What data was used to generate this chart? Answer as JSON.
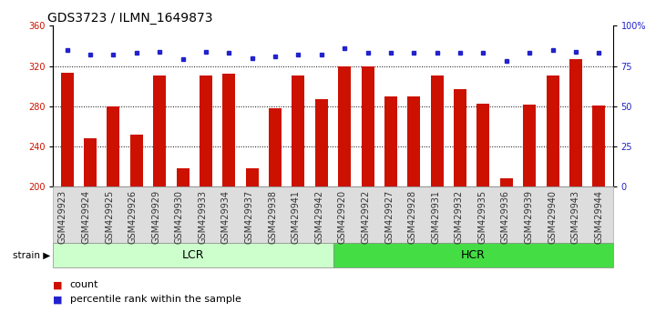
{
  "title": "GDS3723 / ILMN_1649873",
  "categories": [
    "GSM429923",
    "GSM429924",
    "GSM429925",
    "GSM429926",
    "GSM429929",
    "GSM429930",
    "GSM429933",
    "GSM429934",
    "GSM429937",
    "GSM429938",
    "GSM429941",
    "GSM429942",
    "GSM429920",
    "GSM429922",
    "GSM429927",
    "GSM429928",
    "GSM429931",
    "GSM429932",
    "GSM429935",
    "GSM429936",
    "GSM429939",
    "GSM429940",
    "GSM429943",
    "GSM429944"
  ],
  "bar_values": [
    313,
    248,
    280,
    252,
    311,
    218,
    311,
    312,
    218,
    278,
    311,
    287,
    320,
    320,
    290,
    290,
    311,
    297,
    283,
    208,
    282,
    311,
    327,
    281
  ],
  "percentile_values": [
    85,
    82,
    82,
    83,
    84,
    79,
    84,
    83,
    80,
    81,
    82,
    82,
    86,
    83,
    83,
    83,
    83,
    83,
    83,
    78,
    83,
    85,
    84,
    83
  ],
  "lcr_count": 12,
  "hcr_count": 12,
  "ylim_left": [
    200,
    360
  ],
  "ylim_right": [
    0,
    100
  ],
  "yticks_left": [
    200,
    240,
    280,
    320,
    360
  ],
  "yticks_right": [
    0,
    25,
    50,
    75,
    100
  ],
  "bar_color": "#cc1100",
  "dot_color": "#2222cc",
  "lcr_color": "#ccffcc",
  "hcr_color": "#44dd44",
  "grid_color": "#000000",
  "bg_color": "#ffffff",
  "tick_label_color_left": "#cc1100",
  "tick_label_color_right": "#2222cc",
  "title_fontsize": 10,
  "tick_fontsize": 7,
  "label_fontsize": 8,
  "legend_fontsize": 8,
  "strain_label": "strain",
  "lcr_label": "LCR",
  "hcr_label": "HCR",
  "legend_count_label": "count",
  "legend_pct_label": "percentile rank within the sample"
}
